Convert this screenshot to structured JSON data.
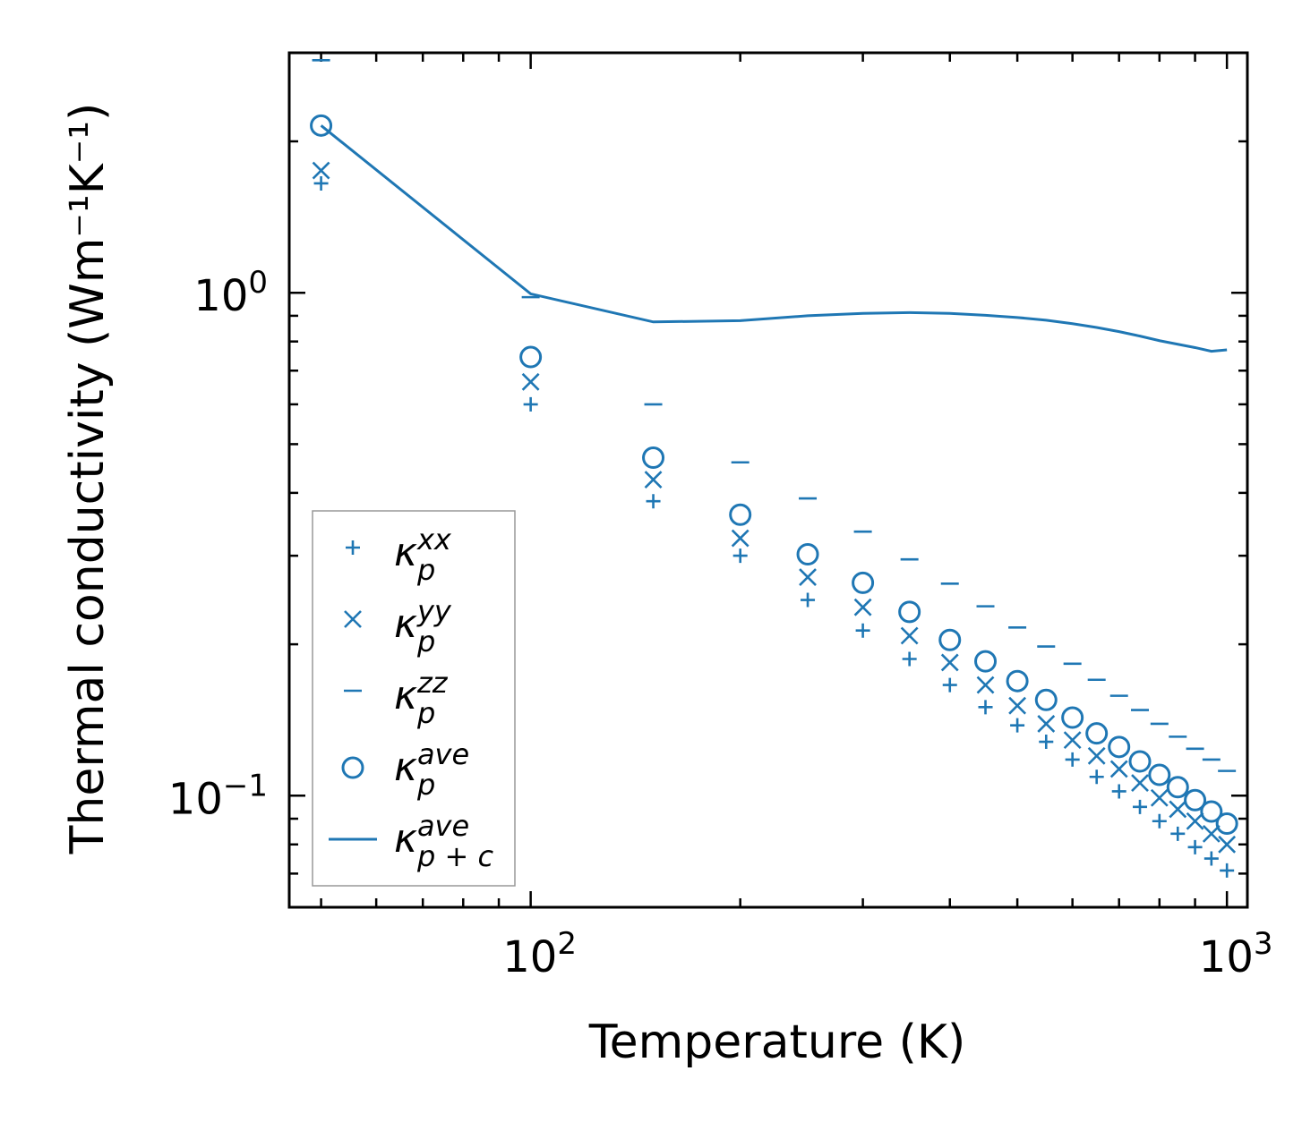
{
  "chart_data": {
    "type": "scatter",
    "xscale": "log",
    "yscale": "log",
    "xlim": [
      45,
      1070
    ],
    "ylim": [
      0.06,
      3.0
    ],
    "xlabel": "Temperature (K)",
    "ylabel": "Thermal conductivity (Wm⁻¹K⁻¹)",
    "xtick_labels": [
      {
        "value": 100,
        "base": "10",
        "exp": "2"
      },
      {
        "value": 1000,
        "base": "10",
        "exp": "3"
      }
    ],
    "ytick_labels": [
      {
        "value": 1.0,
        "base": "10",
        "exp": "0"
      },
      {
        "value": 0.1,
        "base": "10",
        "exp": "−1"
      }
    ],
    "color": "#1f77b4",
    "x": [
      50,
      100,
      150,
      200,
      250,
      300,
      350,
      400,
      450,
      500,
      550,
      600,
      650,
      700,
      750,
      800,
      850,
      900,
      950,
      1000
    ],
    "series": [
      {
        "name": "kxx",
        "marker": "plus",
        "legend_main": "κ",
        "legend_sub": "p",
        "legend_sup": "xx",
        "values": [
          1.65,
          0.6,
          0.385,
          0.3,
          0.245,
          0.213,
          0.187,
          0.166,
          0.15,
          0.138,
          0.128,
          0.118,
          0.109,
          0.102,
          0.095,
          0.089,
          0.084,
          0.079,
          0.075,
          0.071
        ]
      },
      {
        "name": "kyy",
        "marker": "x",
        "legend_main": "κ",
        "legend_sub": "p",
        "legend_sup": "yy",
        "values": [
          1.75,
          0.665,
          0.425,
          0.325,
          0.272,
          0.237,
          0.208,
          0.184,
          0.166,
          0.151,
          0.139,
          0.129,
          0.12,
          0.113,
          0.106,
          0.099,
          0.094,
          0.089,
          0.084,
          0.08
        ]
      },
      {
        "name": "kzz",
        "marker": "hline",
        "legend_main": "κ",
        "legend_sub": "p",
        "legend_sup": "zz",
        "values": [
          2.9,
          0.98,
          0.6,
          0.46,
          0.39,
          0.335,
          0.295,
          0.264,
          0.238,
          0.216,
          0.198,
          0.183,
          0.17,
          0.158,
          0.148,
          0.139,
          0.131,
          0.124,
          0.118,
          0.112
        ]
      },
      {
        "name": "kave",
        "marker": "circle",
        "legend_main": "κ",
        "legend_sub": "p",
        "legend_sup": "ave",
        "values": [
          2.15,
          0.745,
          0.47,
          0.362,
          0.302,
          0.265,
          0.232,
          0.204,
          0.185,
          0.169,
          0.155,
          0.143,
          0.133,
          0.125,
          0.117,
          0.11,
          0.104,
          0.098,
          0.093,
          0.088
        ]
      },
      {
        "name": "kave_pc",
        "marker": "line",
        "legend_main": "κ",
        "legend_sub": "p + c",
        "legend_sup": "ave",
        "values": [
          2.15,
          0.995,
          0.875,
          0.88,
          0.9,
          0.91,
          0.913,
          0.91,
          0.902,
          0.893,
          0.882,
          0.868,
          0.853,
          0.837,
          0.82,
          0.803,
          0.79,
          0.778,
          0.765,
          0.77
        ]
      }
    ],
    "legend_position": "lower-left",
    "grid": false
  }
}
